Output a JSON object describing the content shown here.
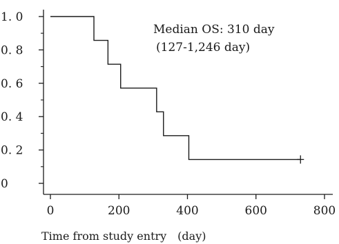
{
  "chart_data": {
    "type": "line",
    "step": true,
    "title": "",
    "xlabel": "Time from study entry　(day)",
    "ylabel": "",
    "xlim": [
      0,
      800
    ],
    "ylim": [
      0,
      1.0
    ],
    "x_ticks": [
      0,
      200,
      400,
      600,
      800
    ],
    "x_tick_labels": [
      "0",
      "200",
      "400",
      "600",
      "800"
    ],
    "y_ticks": [
      0,
      0.2,
      0.4,
      0.6,
      0.8,
      1.0
    ],
    "y_tick_labels": [
      "0",
      "0. 2",
      "0. 4",
      "0. 6",
      "0. 8",
      "1. 0"
    ],
    "y_minor_ticks": [
      0.1,
      0.3,
      0.5,
      0.7,
      0.9
    ],
    "grid": false,
    "legend": "none",
    "annotations": [
      "Median OS: 310 day",
      "(127-1,246 day)"
    ],
    "series": [
      {
        "color": "#1a1a1a",
        "x": [
          0,
          127,
          168,
          205,
          310,
          330,
          404,
          730
        ],
        "y": [
          1.0,
          0.857,
          0.714,
          0.571,
          0.429,
          0.286,
          0.143,
          0.143
        ]
      }
    ],
    "censored": [
      {
        "x": 730,
        "y": 0.143
      }
    ]
  }
}
